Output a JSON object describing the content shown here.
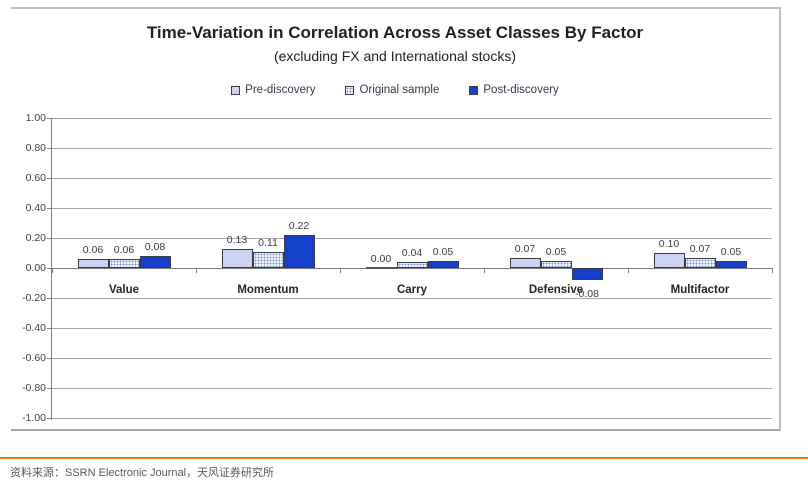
{
  "chart": {
    "title": "Time-Variation in Correlation Across Asset Classes By Factor",
    "subtitle": "(excluding FX and International stocks)"
  },
  "chart_data": {
    "type": "bar",
    "title": "Time-Variation in Correlation Across Asset Classes By Factor",
    "subtitle": "(excluding FX and International stocks)",
    "categories": [
      "Value",
      "Momentum",
      "Carry",
      "Defensive",
      "Multifactor"
    ],
    "series": [
      {
        "name": "Pre-discovery",
        "style": "light",
        "values": [
          0.06,
          0.13,
          0.0,
          0.07,
          0.1
        ]
      },
      {
        "name": "Original sample",
        "style": "dotted",
        "values": [
          0.06,
          0.11,
          0.04,
          0.05,
          0.07
        ]
      },
      {
        "name": "Post-discovery",
        "style": "solid",
        "values": [
          0.08,
          0.22,
          0.05,
          -0.08,
          0.05
        ]
      }
    ],
    "xlabel": "",
    "ylabel": "",
    "ylim": [
      -1.0,
      1.0
    ],
    "y_ticks": [
      1.0,
      0.8,
      0.6,
      0.4,
      0.2,
      0.0,
      -0.2,
      -0.4,
      -0.6,
      -0.8,
      -1.0
    ],
    "grid": true,
    "legend_position": "top",
    "value_labels": true
  },
  "colors": {
    "pre_discovery_fill": "#ccd3f2",
    "original_sample_dot": "#7d90d8",
    "post_discovery_fill": "#1440cc",
    "bar_border": "#3c3c46",
    "gridline": "#a8a8a8",
    "axis": "#808080",
    "accent_rule": "#e87722"
  },
  "footer": {
    "source_text": "资料来源：SSRN Electronic Journal，天风证券研究所"
  }
}
